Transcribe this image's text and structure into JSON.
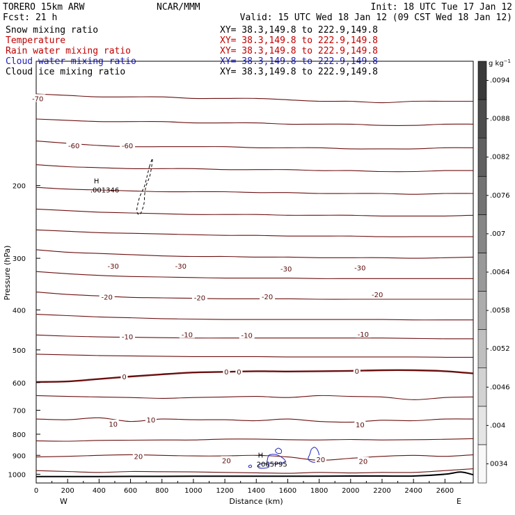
{
  "header": {
    "model": "TORERO  15km ARW",
    "center": "NCAR/MMM",
    "init": "Init: 18 UTC Tue 17 Jan 12",
    "fcst": "Fcst:   21 h",
    "valid": "Valid: 15 UTC Wed 18 Jan 12 (09 CST Wed 18 Jan 12)"
  },
  "legend_rows": [
    {
      "name": "Snow mixing ratio",
      "xy": "XY=  38.3,149.8 to 222.9,149.8",
      "color": "#000000",
      "xy_color": "#000000"
    },
    {
      "name": "Temperature",
      "xy": "XY=  38.3,149.8 to 222.9,149.8",
      "color": "#c00000",
      "xy_color": "#c00000"
    },
    {
      "name": "Rain water mixing ratio",
      "xy": "XY=  38.3,149.8 to 222.9,149.8",
      "color": "#c00000",
      "xy_color": "#c00000"
    },
    {
      "name": "Cloud water mixing ratio",
      "xy": "XY=  38.3,149.8 to 222.9,149.8",
      "color": "#2020c0",
      "xy_color": "#2020c0"
    },
    {
      "name": "Cloud ice mixing ratio",
      "xy": "XY=  38.3,149.8 to 222.9,149.8",
      "color": "#000000",
      "xy_color": "#000000"
    }
  ],
  "chart_data": {
    "type": "line",
    "xlabel": "Distance (km)",
    "ylabel": "Pressure (hPa)",
    "xlim": [
      0,
      2780
    ],
    "ylim": [
      1050,
      100
    ],
    "x_ticks": [
      0,
      200,
      400,
      600,
      800,
      1000,
      1200,
      1400,
      1600,
      1800,
      2000,
      2200,
      2400,
      2600
    ],
    "y_ticks": [
      200,
      300,
      400,
      500,
      600,
      700,
      800,
      900,
      1000
    ],
    "x_left_label": "W",
    "x_right_label": "E",
    "colorbar": {
      "unit": "g kg",
      "unit_exp": "−1",
      "ticks": [
        "0034",
        ".004",
        ".0046",
        ".0052",
        ".0058",
        ".0064",
        ".007",
        ".0076",
        ".0082",
        ".0088",
        ".0094"
      ],
      "tick_values": [
        0.0034,
        0.004,
        0.0046,
        0.0052,
        0.0058,
        0.0064,
        0.007,
        0.0076,
        0.0082,
        0.0088,
        0.0094
      ],
      "range": [
        0.0031,
        0.0097
      ]
    },
    "isotherm_color": "#6b0f0f",
    "isotherms": [
      {
        "p": [
          120,
          121,
          122,
          122,
          122,
          123,
          123,
          123,
          124,
          125,
          125,
          126,
          125,
          125,
          125
        ]
      },
      {
        "p": [
          138,
          139,
          140,
          140,
          140,
          141,
          141,
          141,
          142,
          142,
          142,
          143,
          143,
          142,
          142
        ]
      },
      {
        "p": [
          156,
          158,
          160,
          161,
          161,
          161,
          161,
          162,
          162,
          162,
          163,
          163,
          163,
          162,
          162
        ]
      },
      {
        "p": [
          178,
          180,
          181,
          182,
          182,
          182,
          183,
          183,
          183,
          184,
          184,
          185,
          185,
          184,
          184
        ]
      },
      {
        "p": [
          202,
          204,
          205,
          206,
          207,
          207,
          207,
          208,
          208,
          209,
          209,
          209,
          210,
          209,
          209
        ]
      },
      {
        "p": [
          228,
          230,
          232,
          233,
          234,
          235,
          235,
          235,
          236,
          236,
          236,
          237,
          237,
          237,
          236
        ]
      },
      {
        "p": [
          256,
          258,
          260,
          261,
          262,
          263,
          264,
          264,
          265,
          265,
          265,
          266,
          266,
          266,
          266
        ]
      },
      {
        "p": [
          286,
          290,
          292,
          294,
          296,
          297,
          297,
          298,
          298,
          299,
          299,
          299,
          300,
          299,
          298
        ]
      },
      {
        "p": [
          323,
          327,
          330,
          332,
          333,
          334,
          335,
          335,
          335,
          336,
          336,
          336,
          336,
          336,
          336
        ]
      },
      {
        "p": [
          362,
          367,
          370,
          373,
          374,
          375,
          376,
          376,
          376,
          377,
          377,
          377,
          377,
          377,
          377
        ]
      },
      {
        "p": [
          410,
          413,
          416,
          418,
          420,
          421,
          422,
          422,
          422,
          422,
          422,
          422,
          423,
          423,
          423
        ]
      },
      {
        "p": [
          460,
          463,
          465,
          466,
          467,
          468,
          468,
          468,
          468,
          468,
          468,
          468,
          469,
          470,
          470
        ]
      },
      {
        "p": [
          512,
          514,
          516,
          517,
          518,
          519,
          519,
          519,
          520,
          520,
          520,
          520,
          520,
          521,
          521
        ]
      },
      {
        "p": [
          598,
          596,
          588,
          580,
          573,
          567,
          565,
          563,
          564,
          563,
          562,
          560,
          560,
          563,
          570
        ],
        "bold": true
      },
      {
        "p": [
          645,
          648,
          650,
          652,
          655,
          652,
          650,
          648,
          652,
          645,
          648,
          650,
          660,
          652,
          650
        ]
      },
      {
        "p": [
          735,
          738,
          730,
          745,
          735,
          738,
          738,
          742,
          735,
          745,
          748,
          740,
          742,
          735,
          735
        ]
      },
      {
        "p": [
          830,
          832,
          828,
          827,
          826,
          826,
          822,
          822,
          825,
          826,
          824,
          826,
          825,
          823,
          820
        ]
      },
      {
        "p": [
          908,
          905,
          900,
          897,
          900,
          903,
          903,
          900,
          908,
          925,
          915,
          905,
          900,
          905,
          897
        ]
      },
      {
        "p": [
          980,
          985,
          990,
          985,
          986,
          987,
          990,
          992,
          995,
          990,
          993,
          990,
          990,
          980,
          970
        ]
      }
    ],
    "isotherm_x": [
      0,
      200,
      400,
      600,
      800,
      1000,
      1200,
      1400,
      1600,
      1800,
      2000,
      2200,
      2400,
      2600,
      2780
    ],
    "contour_labels": [
      {
        "text": "-70",
        "x": 10,
        "p": 123
      },
      {
        "text": "-60",
        "x": 240,
        "p": 160
      },
      {
        "text": "-60",
        "x": 580,
        "p": 160
      },
      {
        "text": "-30",
        "x": 490,
        "p": 313
      },
      {
        "text": "-30",
        "x": 920,
        "p": 313
      },
      {
        "text": "-30",
        "x": 1590,
        "p": 318
      },
      {
        "text": "-30",
        "x": 2060,
        "p": 316
      },
      {
        "text": "-20",
        "x": 450,
        "p": 372
      },
      {
        "text": "-20",
        "x": 1040,
        "p": 373
      },
      {
        "text": "-20",
        "x": 1470,
        "p": 371
      },
      {
        "text": "-20",
        "x": 2170,
        "p": 367
      },
      {
        "text": "-10",
        "x": 580,
        "p": 464
      },
      {
        "text": "-10",
        "x": 960,
        "p": 459
      },
      {
        "text": "-10",
        "x": 1340,
        "p": 460
      },
      {
        "text": "-10",
        "x": 2080,
        "p": 458
      },
      {
        "text": "0",
        "x": 560,
        "p": 580
      },
      {
        "text": "0",
        "x": 1210,
        "p": 564
      },
      {
        "text": "0",
        "x": 1290,
        "p": 564
      },
      {
        "text": "0",
        "x": 2040,
        "p": 562
      },
      {
        "text": "10",
        "x": 490,
        "p": 755
      },
      {
        "text": "10",
        "x": 730,
        "p": 737
      },
      {
        "text": "10",
        "x": 2060,
        "p": 758
      },
      {
        "text": "20",
        "x": 650,
        "p": 904
      },
      {
        "text": "20",
        "x": 1210,
        "p": 925
      },
      {
        "text": "20",
        "x": 1810,
        "p": 920
      },
      {
        "text": "20",
        "x": 2080,
        "p": 930
      }
    ],
    "cloud_water": [
      {
        "points": [
          [
            1520,
            875
          ],
          [
            1540,
            865
          ],
          [
            1560,
            875
          ],
          [
            1555,
            890
          ],
          [
            1530,
            888
          ]
        ]
      },
      {
        "points": [
          [
            1470,
            925
          ],
          [
            1480,
            900
          ],
          [
            1510,
            895
          ],
          [
            1540,
            900
          ],
          [
            1570,
            915
          ],
          [
            1585,
            930
          ],
          [
            1560,
            940
          ],
          [
            1500,
            942
          ],
          [
            1470,
            935
          ]
        ]
      },
      {
        "points": [
          [
            1750,
            870
          ],
          [
            1770,
            860
          ],
          [
            1790,
            875
          ],
          [
            1800,
            905
          ],
          [
            1790,
            930
          ],
          [
            1760,
            935
          ],
          [
            1730,
            920
          ],
          [
            1740,
            895
          ]
        ]
      },
      {
        "points": [
          [
            1410,
            950
          ],
          [
            1440,
            942
          ],
          [
            1470,
            945
          ],
          [
            1480,
            960
          ],
          [
            1450,
            967
          ],
          [
            1415,
            964
          ]
        ]
      },
      {
        "points": [
          [
            1350,
            955
          ],
          [
            1365,
            950
          ],
          [
            1370,
            960
          ],
          [
            1355,
            963
          ]
        ]
      }
    ],
    "cloud_ice_contour": {
      "points": [
        [
          720,
          180
        ],
        [
          740,
          172
        ],
        [
          725,
          188
        ],
        [
          700,
          200
        ],
        [
          690,
          210
        ],
        [
          685,
          222
        ],
        [
          660,
          235
        ],
        [
          640,
          230
        ],
        [
          655,
          215
        ],
        [
          670,
          208
        ],
        [
          690,
          200
        ],
        [
          705,
          190
        ]
      ]
    },
    "snow_annotation": {
      "marker": "H",
      "text": ".001346",
      "x": 380,
      "p": 206
    },
    "rain_annotation": {
      "marker": "H",
      "text": "2065P95",
      "x": 1490,
      "p": 944
    },
    "terrain_p": [
      1013,
      1013,
      1013,
      1012,
      1012,
      1011,
      1011,
      1011,
      1011,
      1011,
      1010,
      1010,
      1010,
      1000,
      1003
    ],
    "terrain_x": [
      0,
      200,
      400,
      600,
      800,
      1000,
      1200,
      1400,
      1600,
      1800,
      2000,
      2200,
      2400,
      2600,
      2780
    ],
    "terrain_peak": {
      "x": 2700,
      "p": 988
    }
  }
}
